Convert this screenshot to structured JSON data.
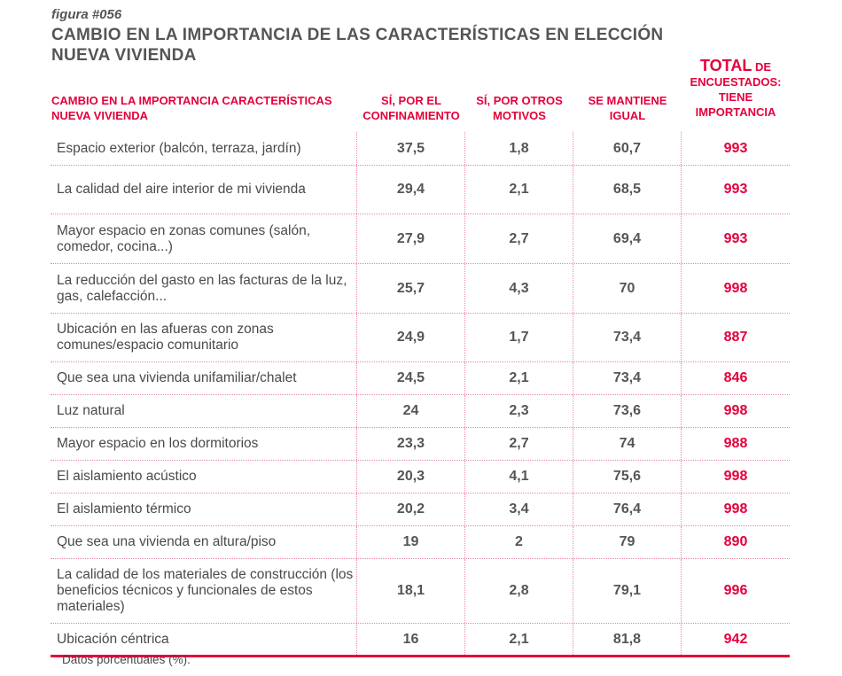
{
  "figure_label": "figura #056",
  "title": "CAMBIO EN LA IMPORTANCIA DE LAS CARACTERÍSTICAS EN ELECCIÓN NUEVA VIVIENDA",
  "colors": {
    "accent": "#e4003b",
    "text": "#555555",
    "grid": "#e88aa3"
  },
  "headers": {
    "feature": "CAMBIO EN LA IMPORTANCIA CARACTERÍSTICAS NUEVA VIVIENDA",
    "confinement": "SÍ, POR EL CONFINAMIENTO",
    "other_reasons": "SÍ, POR OTROS MOTIVOS",
    "unchanged": "SE MANTIENE IGUAL",
    "total_big": "TOTAL",
    "total_rest": "DE ENCUESTADOS: TIENE IMPORTANCIA"
  },
  "rows": [
    {
      "feature": "Espacio exterior (balcón, terraza, jardín)",
      "confinement": "37,5",
      "other": "1,8",
      "same": "60,7",
      "total": "993"
    },
    {
      "feature": "La calidad del aire interior de mi vivienda",
      "confinement": "29,4",
      "other": "2,1",
      "same": "68,5",
      "total": "993"
    },
    {
      "feature": "Mayor espacio en zonas comunes (salón, comedor, cocina...)",
      "confinement": "27,9",
      "other": "2,7",
      "same": "69,4",
      "total": "993"
    },
    {
      "feature": "La reducción del gasto en las facturas de la luz, gas, calefacción...",
      "confinement": "25,7",
      "other": "4,3",
      "same": "70",
      "total": "998"
    },
    {
      "feature": "Ubicación en las afueras con zonas comunes/espacio comunitario",
      "confinement": "24,9",
      "other": "1,7",
      "same": "73,4",
      "total": "887"
    },
    {
      "feature": "Que sea una vivienda unifamiliar/chalet",
      "confinement": "24,5",
      "other": "2,1",
      "same": "73,4",
      "total": "846"
    },
    {
      "feature": "Luz natural",
      "confinement": "24",
      "other": "2,3",
      "same": "73,6",
      "total": "998"
    },
    {
      "feature": "Mayor espacio en los dormitorios",
      "confinement": "23,3",
      "other": "2,7",
      "same": "74",
      "total": "988"
    },
    {
      "feature": "El aislamiento acústico",
      "confinement": "20,3",
      "other": "4,1",
      "same": "75,6",
      "total": "998"
    },
    {
      "feature": "El aislamiento térmico",
      "confinement": "20,2",
      "other": "3,4",
      "same": "76,4",
      "total": "998"
    },
    {
      "feature": "Que sea una vivienda en altura/piso",
      "confinement": "19",
      "other": "2",
      "same": "79",
      "total": "890"
    },
    {
      "feature": "La calidad de los materiales de construcción (los beneficios técnicos y funcionales de estos materiales)",
      "confinement": "18,1",
      "other": "2,8",
      "same": "79,1",
      "total": "996"
    },
    {
      "feature": "Ubicación céntrica",
      "confinement": "16",
      "other": "2,1",
      "same": "81,8",
      "total": "942"
    }
  ],
  "footnote": "Datos porcentuales (%)."
}
